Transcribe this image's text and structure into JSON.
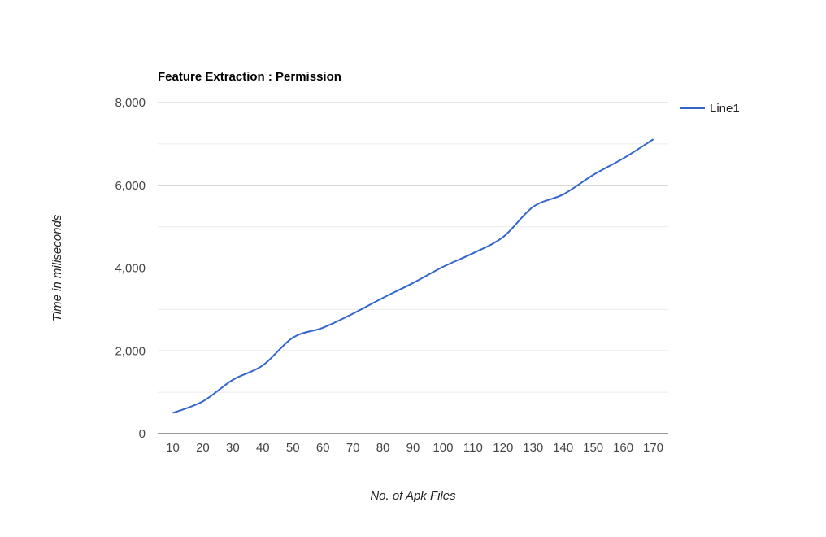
{
  "chart_data": {
    "type": "line",
    "title": "Feature Extraction : Permission",
    "xlabel": "No. of Apk Files",
    "ylabel": "Time in miliseconds",
    "categories": [
      "10",
      "20",
      "30",
      "40",
      "50",
      "60",
      "70",
      "80",
      "90",
      "100",
      "110",
      "120",
      "130",
      "140",
      "150",
      "160",
      "170"
    ],
    "y_ticks": [
      "0",
      "2,000",
      "4,000",
      "6,000",
      "8,000"
    ],
    "ylim": [
      0,
      8000
    ],
    "grid": true,
    "legend_position": "right",
    "series": [
      {
        "name": "Line1",
        "color": "#3366cc",
        "values": [
          500,
          780,
          1300,
          1650,
          2320,
          2560,
          2900,
          3280,
          3640,
          4030,
          4360,
          4750,
          5480,
          5780,
          6250,
          6650,
          7110
        ]
      }
    ]
  }
}
